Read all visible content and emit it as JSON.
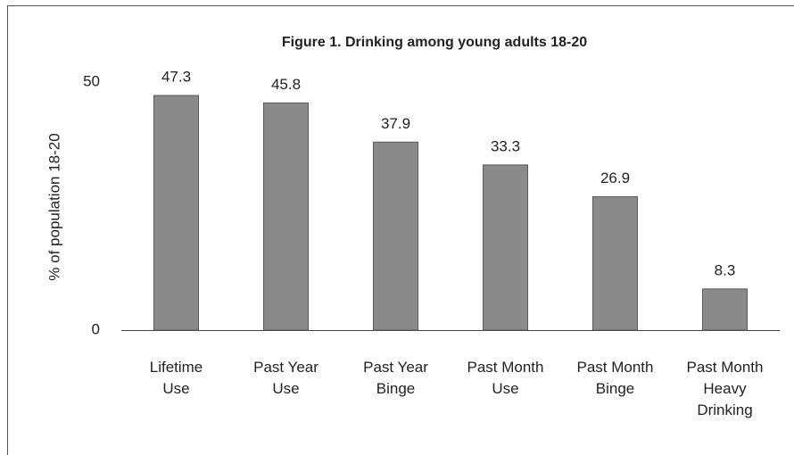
{
  "chart_data": {
    "type": "bar",
    "title": "Figure 1.  Drinking among young adults 18-20",
    "y_label": "% of population 18-20",
    "categories": [
      "Lifetime Use",
      "Past Year Use",
      "Past Year Binge",
      "Past Month Use",
      "Past Month Binge",
      "Past Month Heavy Drinking"
    ],
    "values": [
      47.3,
      45.8,
      37.9,
      33.3,
      26.9,
      8.3
    ],
    "color": "#8a8a8a",
    "ylim": [
      0,
      50
    ],
    "yticks": [
      0,
      50
    ],
    "grid": false
  }
}
